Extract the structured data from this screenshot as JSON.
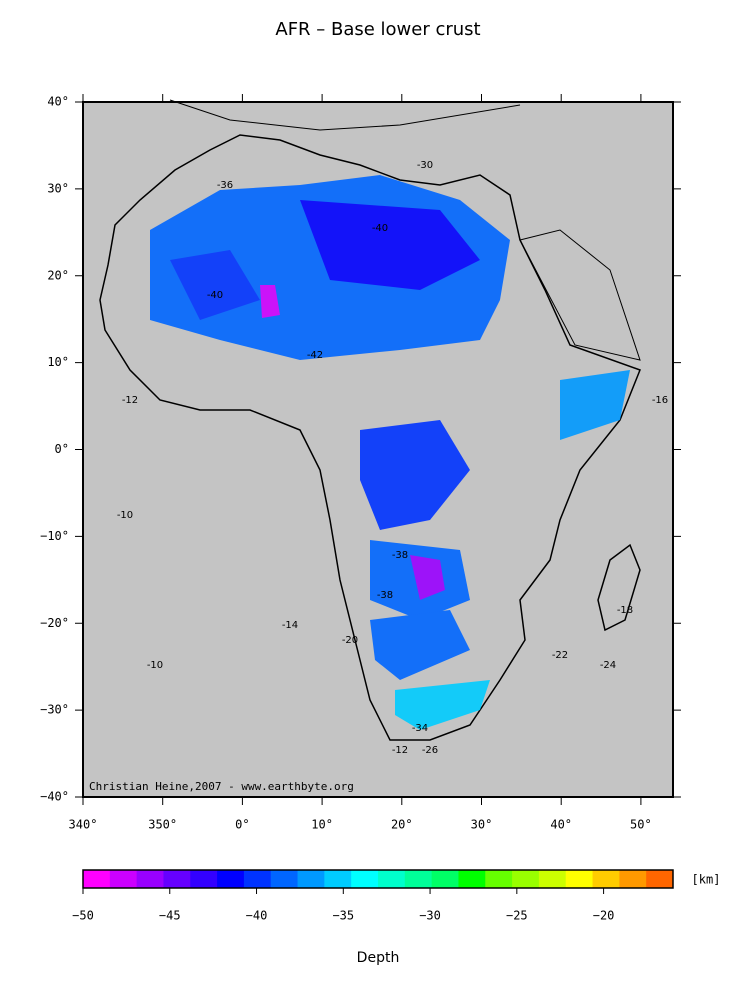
{
  "title": "AFR – Base lower crust",
  "map": {
    "lon_ticks": [
      {
        "value": 340,
        "label": "340°"
      },
      {
        "value": 350,
        "label": "350°"
      },
      {
        "value": 360,
        "label": "0°"
      },
      {
        "value": 370,
        "label": "10°"
      },
      {
        "value": 380,
        "label": "20°"
      },
      {
        "value": 390,
        "label": "30°"
      },
      {
        "value": 400,
        "label": "40°"
      },
      {
        "value": 410,
        "label": "50°"
      }
    ],
    "lat_ticks": [
      {
        "value": 40,
        "label": "40°"
      },
      {
        "value": 30,
        "label": "30°"
      },
      {
        "value": 20,
        "label": "20°"
      },
      {
        "value": 10,
        "label": "10°"
      },
      {
        "value": 0,
        "label": "0°"
      },
      {
        "value": -10,
        "label": "−10°"
      },
      {
        "value": -20,
        "label": "−20°"
      },
      {
        "value": -30,
        "label": "−30°"
      },
      {
        "value": -40,
        "label": "−40°"
      }
    ],
    "contour_labels": [
      "-40",
      "-36",
      "-42",
      "-38",
      "-30",
      "-34",
      "-12",
      "-10",
      "-20",
      "-14",
      "-22",
      "-18",
      "-26",
      "-16",
      "-40",
      "-38",
      "-12",
      "-10",
      "-24"
    ],
    "credit": "Christian Heine,2007 - www.earthbyte.org"
  },
  "colorbar": {
    "range": [
      -50,
      -16
    ],
    "ticks": [
      {
        "value": -50,
        "label": "−50"
      },
      {
        "value": -45,
        "label": "−45"
      },
      {
        "value": -40,
        "label": "−40"
      },
      {
        "value": -35,
        "label": "−35"
      },
      {
        "value": -30,
        "label": "−30"
      },
      {
        "value": -25,
        "label": "−25"
      },
      {
        "value": -20,
        "label": "−20"
      }
    ],
    "colors": [
      "#ff00ff",
      "#cc00ff",
      "#9900ff",
      "#6600ff",
      "#3300ff",
      "#0000ff",
      "#0033ff",
      "#0066ff",
      "#0099ff",
      "#00ccff",
      "#00ffff",
      "#00ffcc",
      "#00ff99",
      "#00ff66",
      "#00ff00",
      "#66ff00",
      "#99ff00",
      "#ccff00",
      "#ffff00",
      "#ffcc00",
      "#ff9900",
      "#ff6600"
    ],
    "unit": "[km]",
    "label": "Depth"
  }
}
